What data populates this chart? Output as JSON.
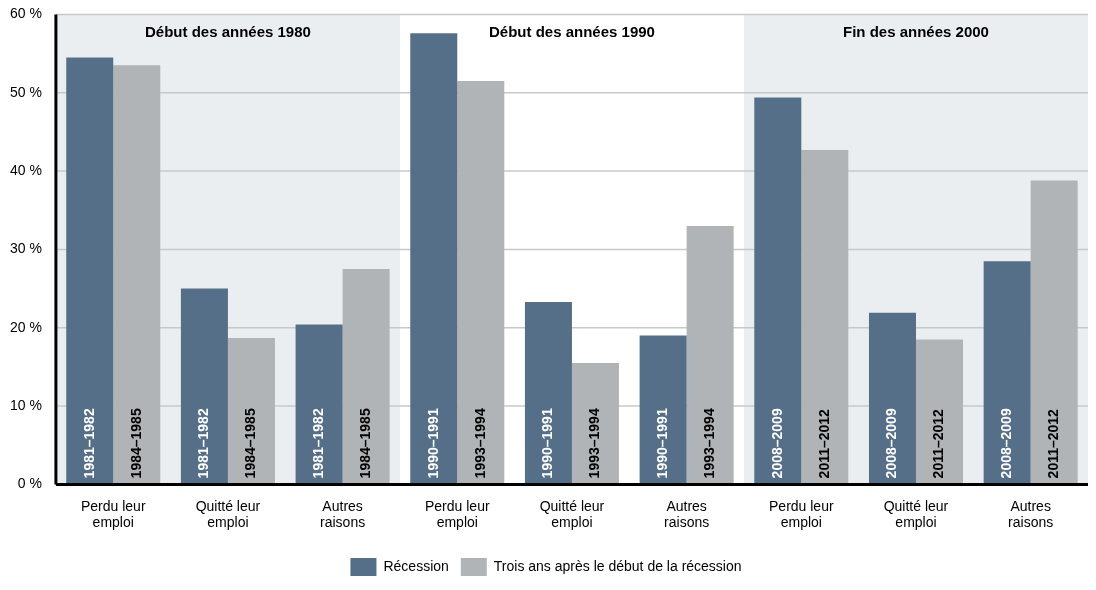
{
  "chart_data": {
    "type": "bar",
    "categories": [
      "Perdu leur emploi",
      "Quitté leur emploi",
      "Autres raisons",
      "Perdu leur emploi",
      "Quitté leur emploi",
      "Autres raisons",
      "Perdu leur emploi",
      "Quitté leur emploi",
      "Autres raisons"
    ],
    "series": [
      {
        "name": "Récession",
        "color": "#566f89",
        "values": [
          54.5,
          25.0,
          20.4,
          57.6,
          23.3,
          19.0,
          49.4,
          21.9,
          28.5
        ],
        "value_labels": [
          "1981–1982",
          "1981–1982",
          "1981–1982",
          "1990–1991",
          "1990–1991",
          "1990–1991",
          "2008–2009",
          "2008–2009",
          "2008–2009"
        ]
      },
      {
        "name": "Trois ans après le début de la récession",
        "color": "#b1b4b7",
        "values": [
          53.5,
          18.7,
          27.5,
          51.5,
          15.5,
          33.0,
          42.7,
          18.5,
          38.8
        ],
        "value_labels": [
          "1984–1985",
          "1984–1985",
          "1984–1985",
          "1993–1994",
          "1993–1994",
          "1993–1994",
          "2011–2012",
          "2011–2012",
          "2011–2012"
        ]
      }
    ],
    "ylim": [
      0,
      60
    ],
    "yticks": [
      {
        "value": 0,
        "label": "0 %"
      },
      {
        "value": 10,
        "label": "10 %"
      },
      {
        "value": 20,
        "label": "20 %"
      },
      {
        "value": 30,
        "label": "30 %"
      },
      {
        "value": 40,
        "label": "40 %"
      },
      {
        "value": 50,
        "label": "50 %"
      },
      {
        "value": 60,
        "label": "60 %"
      }
    ],
    "annotations": [
      "Début des années 1980",
      "Début des années 1990",
      "Fin des années 2000"
    ],
    "grid": "y",
    "legend": "bottom"
  }
}
